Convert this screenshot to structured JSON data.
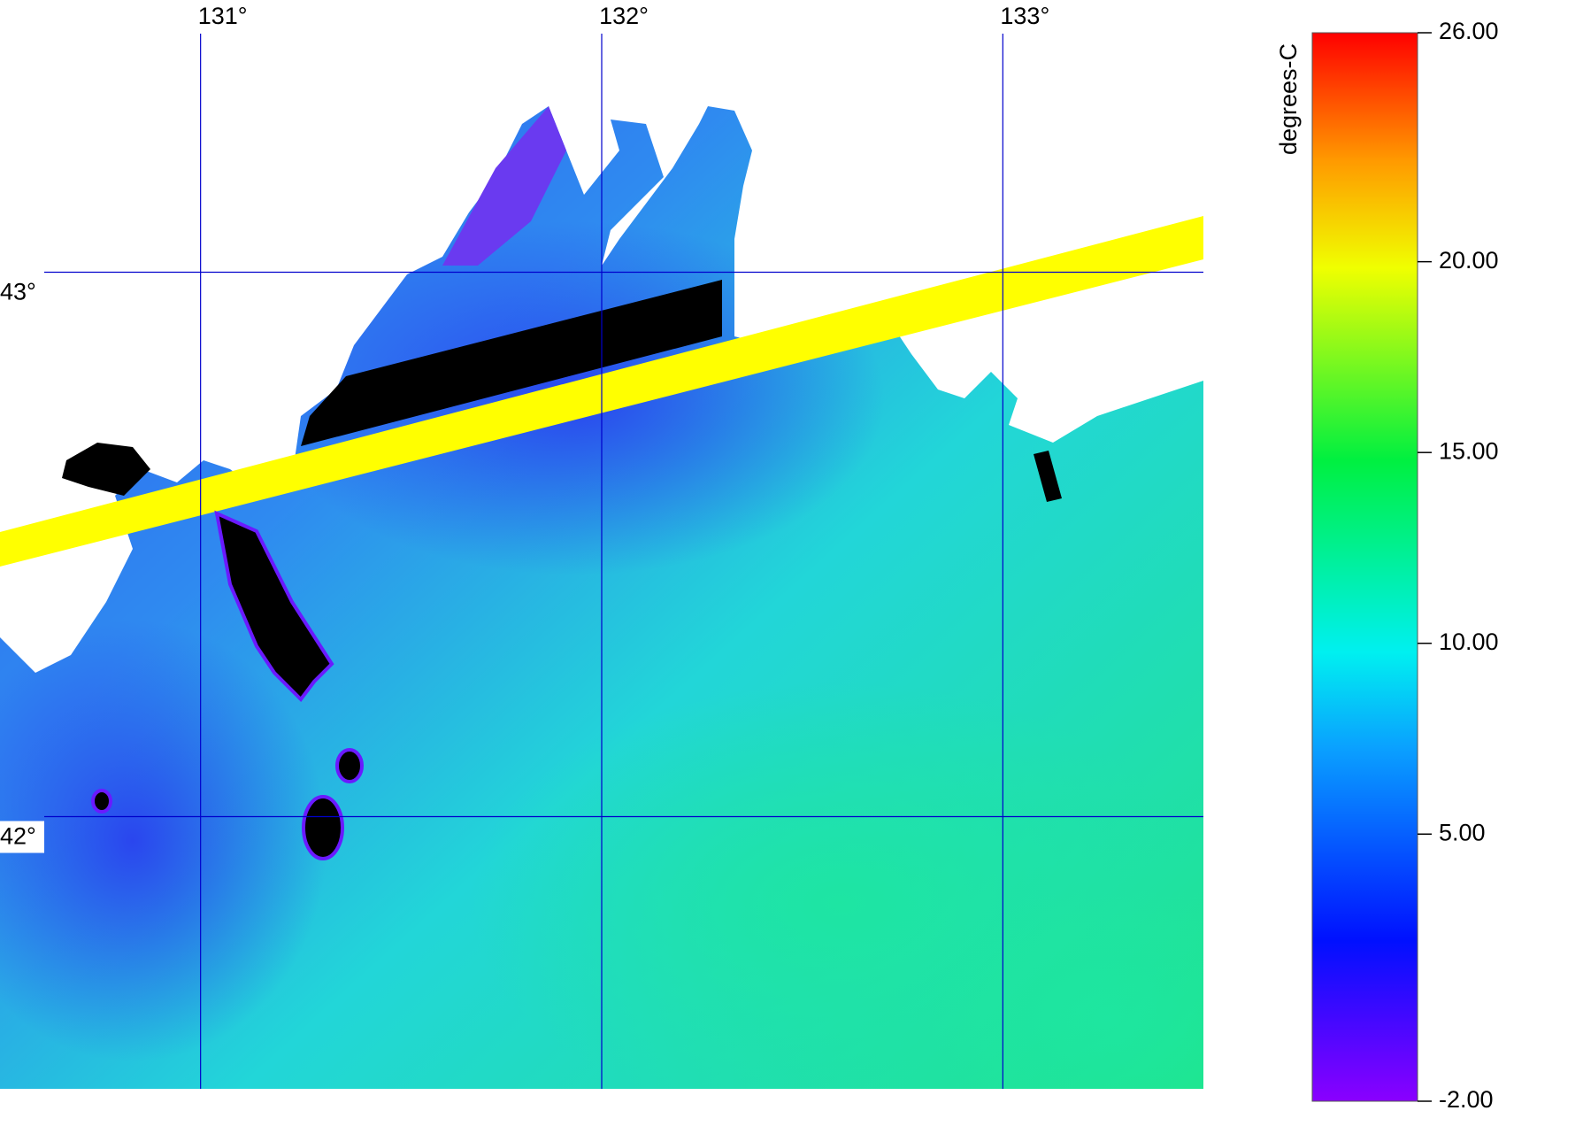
{
  "map": {
    "lonlim": [
      130.5,
      133.5
    ],
    "latlim": [
      41.5,
      43.5
    ],
    "lon_ticks": [
      {
        "value": 131,
        "label": "131°"
      },
      {
        "value": 132,
        "label": "132°"
      },
      {
        "value": 133,
        "label": "133°"
      }
    ],
    "lat_ticks": [
      {
        "value": 43,
        "label": "43°"
      },
      {
        "value": 42,
        "label": "42°"
      }
    ]
  },
  "colorbar": {
    "label": "degrees-C",
    "lim": [
      -2,
      26
    ],
    "ticks": [
      {
        "value": -2,
        "label": "-2.00"
      },
      {
        "value": 5,
        "label": "5.00"
      },
      {
        "value": 10,
        "label": "10.00"
      },
      {
        "value": 15,
        "label": "15.00"
      },
      {
        "value": 20,
        "label": "20.00"
      },
      {
        "value": 26,
        "label": "26.00"
      }
    ]
  }
}
